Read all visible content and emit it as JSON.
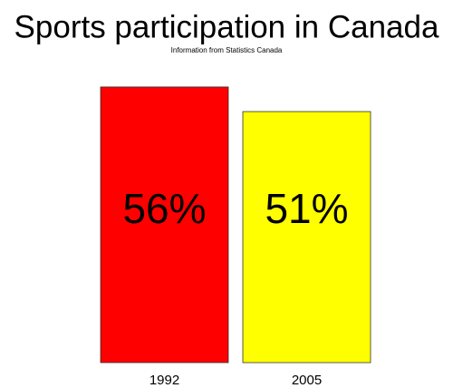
{
  "chart_data": {
    "type": "bar",
    "title": "Sports participation in Canada",
    "subtitle": "Information from Statistics Canada",
    "categories": [
      "1992",
      "2005"
    ],
    "values": [
      56,
      51
    ],
    "value_labels": [
      "56%",
      "51%"
    ],
    "colors": [
      "#ff0000",
      "#ffff00"
    ]
  }
}
